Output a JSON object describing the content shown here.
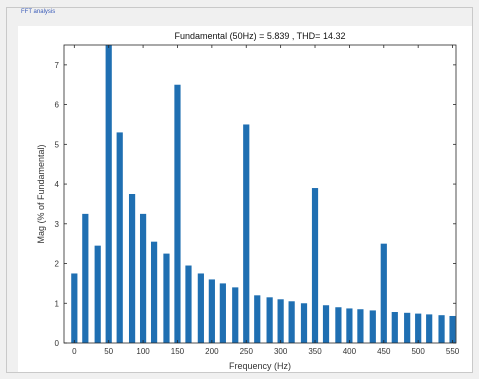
{
  "panel": {
    "label": "FFT analysis"
  },
  "chart_data": {
    "type": "bar",
    "title": "Fundamental (50Hz) = 5.839 , THD= 14.32",
    "xlabel": "Frequency (Hz)",
    "ylabel": "Mag (% of Fundamental)",
    "xlim": [
      -15,
      555
    ],
    "ylim": [
      0,
      7.5
    ],
    "xticks": [
      0,
      50,
      100,
      150,
      200,
      250,
      300,
      350,
      400,
      450,
      500,
      550
    ],
    "yticks": [
      0,
      1,
      2,
      3,
      4,
      5,
      6,
      7
    ],
    "grid": false,
    "color": "#1f6fb2",
    "x": [
      0,
      16,
      34,
      50,
      66,
      84,
      100,
      116,
      134,
      150,
      166,
      184,
      200,
      216,
      234,
      250,
      266,
      284,
      300,
      316,
      334,
      350,
      366,
      384,
      400,
      416,
      434,
      450,
      466,
      484,
      500,
      516,
      534,
      550
    ],
    "values": [
      1.75,
      3.25,
      2.45,
      7.7,
      5.3,
      3.75,
      3.25,
      2.55,
      2.25,
      6.5,
      1.95,
      1.75,
      1.6,
      1.5,
      1.4,
      5.5,
      1.2,
      1.15,
      1.1,
      1.05,
      1.0,
      3.9,
      0.95,
      0.9,
      0.87,
      0.85,
      0.82,
      2.5,
      0.78,
      0.76,
      0.74,
      0.72,
      0.7,
      0.68
    ]
  }
}
